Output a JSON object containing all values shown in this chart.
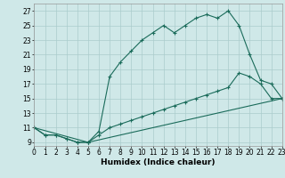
{
  "xlabel": "Humidex (Indice chaleur)",
  "bg_color": "#cfe8e8",
  "grid_color": "#aacccc",
  "line_color": "#1a6b5a",
  "line1_x": [
    0,
    1,
    2,
    3,
    4,
    5,
    6,
    7,
    8,
    9,
    10,
    11,
    12,
    13,
    14,
    15,
    16,
    17,
    18,
    19,
    20,
    21,
    22,
    23
  ],
  "line1_y": [
    11,
    10,
    10,
    9.5,
    9,
    9,
    10.5,
    18,
    20,
    21.5,
    23,
    24,
    25,
    24,
    25,
    26,
    26.5,
    26,
    27,
    25,
    21,
    17.5,
    17,
    15
  ],
  "line2_x": [
    0,
    1,
    2,
    3,
    4,
    5,
    6,
    7,
    8,
    9,
    10,
    11,
    12,
    13,
    14,
    15,
    16,
    17,
    18,
    19,
    20,
    21,
    22,
    23
  ],
  "line2_y": [
    11,
    10,
    10,
    9.5,
    9,
    9,
    10,
    11,
    11.5,
    12,
    12.5,
    13,
    13.5,
    14,
    14.5,
    15,
    15.5,
    16,
    16.5,
    18.5,
    18,
    17,
    15,
    15
  ],
  "line3_x": [
    0,
    5,
    23
  ],
  "line3_y": [
    11,
    9,
    15
  ],
  "xlim": [
    0,
    23
  ],
  "ylim": [
    8.5,
    28
  ],
  "yticks": [
    9,
    11,
    13,
    15,
    17,
    19,
    21,
    23,
    25,
    27
  ],
  "xticks": [
    0,
    1,
    2,
    3,
    4,
    5,
    6,
    7,
    8,
    9,
    10,
    11,
    12,
    13,
    14,
    15,
    16,
    17,
    18,
    19,
    20,
    21,
    22,
    23
  ],
  "tick_fontsize": 5.5,
  "xlabel_fontsize": 6.5
}
